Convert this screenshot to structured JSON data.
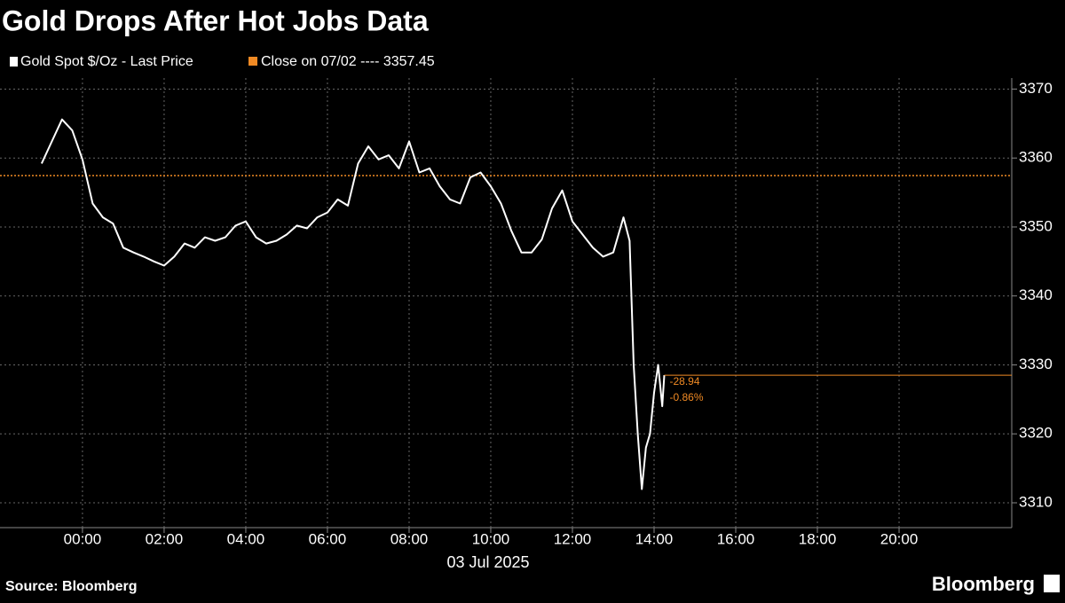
{
  "chart_data": {
    "type": "line",
    "title": "Gold Drops After Hot Jobs Data",
    "x_label": "03 Jul 2025",
    "source": "Source: Bloomberg",
    "brand": "Bloomberg",
    "series": [
      {
        "name": "Gold Spot $/Oz - Last Price",
        "color": "#ffffff",
        "x": [
          -1,
          -0.75,
          -0.5,
          -0.25,
          0,
          0.25,
          0.5,
          0.75,
          1,
          1.25,
          1.5,
          1.75,
          2,
          2.25,
          2.5,
          2.75,
          3,
          3.25,
          3.5,
          3.75,
          4,
          4.25,
          4.5,
          4.75,
          5,
          5.25,
          5.5,
          5.75,
          6,
          6.25,
          6.5,
          6.75,
          7,
          7.25,
          7.5,
          7.75,
          8,
          8.25,
          8.5,
          8.75,
          9,
          9.25,
          9.5,
          9.75,
          10,
          10.25,
          10.5,
          10.75,
          11,
          11.25,
          11.5,
          11.75,
          12,
          12.25,
          12.5,
          12.75,
          13,
          13.25,
          13.4,
          13.5,
          13.6,
          13.7,
          13.8,
          13.9,
          14,
          14.1,
          14.2,
          14.25
        ],
        "values": [
          3359.2,
          3362.4,
          3365.6,
          3364,
          3359.8,
          3353.4,
          3351.4,
          3350.5,
          3347,
          3346.3,
          3345.7,
          3345,
          3344.4,
          3345.7,
          3347.6,
          3347,
          3348.5,
          3348,
          3348.5,
          3350.2,
          3350.8,
          3348.5,
          3347.6,
          3348,
          3348.9,
          3350.2,
          3349.8,
          3351.4,
          3352.1,
          3354,
          3353.1,
          3359.2,
          3361.7,
          3359.8,
          3360.4,
          3358.5,
          3362.4,
          3357.9,
          3358.5,
          3355.9,
          3354,
          3353.4,
          3357.2,
          3357.9,
          3355.9,
          3353.4,
          3349.5,
          3346.3,
          3346.3,
          3348.2,
          3352.7,
          3355.3,
          3350.8,
          3348.9,
          3347,
          3345.7,
          3346.3,
          3351.4,
          3348,
          3330,
          3320,
          3312,
          3318,
          3320,
          3326,
          3330,
          3324,
          3328.51
        ]
      }
    ],
    "reference_line": {
      "name": "Close on 07/02 ---- 3357.45",
      "value": 3357.45,
      "color": "#f08a24"
    },
    "annotations": [
      {
        "text": "-28.94"
      },
      {
        "text": "-0.86%"
      }
    ],
    "annotation_color": "#f08a24",
    "xlim": [
      -2.02,
      22.76
    ],
    "xticks": [
      {
        "value": 0,
        "label": "00:00"
      },
      {
        "value": 2,
        "label": "02:00"
      },
      {
        "value": 4,
        "label": "04:00"
      },
      {
        "value": 6,
        "label": "06:00"
      },
      {
        "value": 8,
        "label": "08:00"
      },
      {
        "value": 10,
        "label": "10:00"
      },
      {
        "value": 12,
        "label": "12:00"
      },
      {
        "value": 14,
        "label": "14:00"
      },
      {
        "value": 16,
        "label": "16:00"
      },
      {
        "value": 18,
        "label": "18:00"
      },
      {
        "value": 20,
        "label": "20:00"
      }
    ],
    "ylim": [
      3306.4,
      3371.6
    ],
    "yticks": [
      3310,
      3320,
      3330,
      3340,
      3350,
      3360,
      3370
    ],
    "grid": true
  }
}
